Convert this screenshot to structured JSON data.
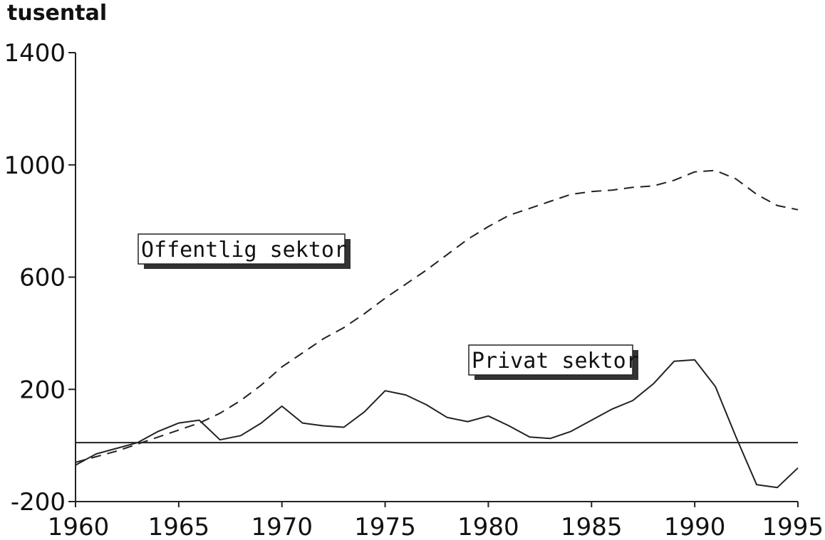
{
  "chart_data": {
    "type": "line",
    "unit_label": "tusental",
    "xlim": [
      1960,
      1995
    ],
    "ylim": [
      -200,
      1400
    ],
    "x_ticks": [
      1960,
      1965,
      1970,
      1975,
      1980,
      1985,
      1990,
      1995
    ],
    "y_ticks": [
      -200,
      200,
      600,
      1000,
      1400
    ],
    "reference_line": 10,
    "grid": false,
    "series": [
      {
        "name": "Offentlig sektor",
        "style": "dashed",
        "color": "#222222",
        "x": [
          1960,
          1961,
          1962,
          1963,
          1964,
          1965,
          1966,
          1967,
          1968,
          1969,
          1970,
          1971,
          1972,
          1973,
          1974,
          1975,
          1976,
          1977,
          1978,
          1979,
          1980,
          1981,
          1982,
          1983,
          1984,
          1985,
          1986,
          1987,
          1988,
          1989,
          1990,
          1991,
          1992,
          1993,
          1994,
          1995
        ],
        "values": [
          -60,
          -40,
          -20,
          5,
          30,
          55,
          80,
          115,
          160,
          215,
          280,
          330,
          380,
          420,
          470,
          525,
          575,
          625,
          680,
          735,
          780,
          820,
          845,
          870,
          895,
          905,
          910,
          920,
          925,
          945,
          975,
          980,
          950,
          895,
          855,
          840
        ]
      },
      {
        "name": "Privat sektor",
        "style": "solid",
        "color": "#222222",
        "x": [
          1960,
          1961,
          1962,
          1963,
          1964,
          1965,
          1966,
          1967,
          1968,
          1969,
          1970,
          1971,
          1972,
          1973,
          1974,
          1975,
          1976,
          1977,
          1978,
          1979,
          1980,
          1981,
          1982,
          1983,
          1984,
          1985,
          1986,
          1987,
          1988,
          1989,
          1990,
          1991,
          1992,
          1993,
          1994,
          1995
        ],
        "values": [
          -70,
          -30,
          -10,
          10,
          50,
          80,
          90,
          20,
          35,
          80,
          140,
          80,
          70,
          65,
          120,
          195,
          180,
          145,
          100,
          85,
          105,
          70,
          30,
          25,
          50,
          90,
          130,
          160,
          220,
          300,
          305,
          210,
          30,
          -140,
          -150,
          -80
        ]
      }
    ],
    "legend_labels": {
      "offentlig": "Offentlig sektor",
      "privat": "Privat sektor"
    }
  }
}
